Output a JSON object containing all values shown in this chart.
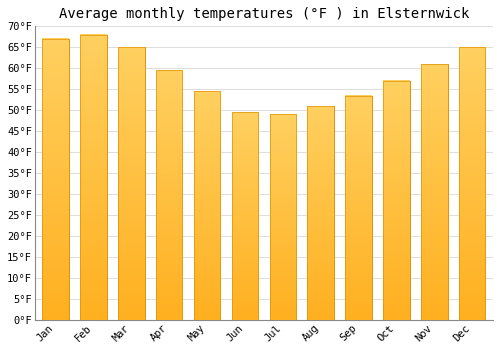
{
  "title": "Average monthly temperatures (°F ) in Elsternwick",
  "months": [
    "Jan",
    "Feb",
    "Mar",
    "Apr",
    "May",
    "Jun",
    "Jul",
    "Aug",
    "Sep",
    "Oct",
    "Nov",
    "Dec"
  ],
  "values": [
    67,
    68,
    65,
    59.5,
    54.5,
    49.5,
    49,
    51,
    53.5,
    57,
    61,
    65
  ],
  "bar_color_top": "#FFA500",
  "bar_color_bottom": "#FFB833",
  "bar_edge_color": "#E09000",
  "ylim": [
    0,
    70
  ],
  "yticks": [
    0,
    5,
    10,
    15,
    20,
    25,
    30,
    35,
    40,
    45,
    50,
    55,
    60,
    65,
    70
  ],
  "background_color": "#FFFFFF",
  "grid_color": "#DDDDDD",
  "title_fontsize": 10,
  "tick_fontsize": 7.5,
  "figsize": [
    5.0,
    3.5
  ],
  "dpi": 100
}
